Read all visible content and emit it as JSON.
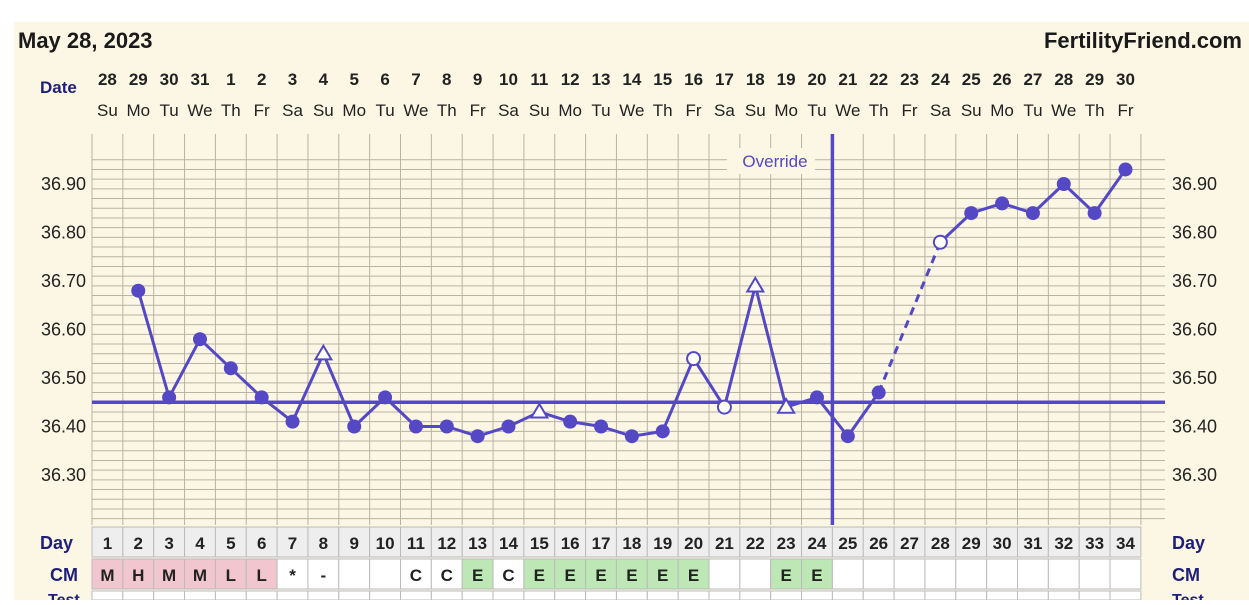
{
  "header": {
    "date": "May 28, 2023",
    "brand": "FertilityFriend.com"
  },
  "labels": {
    "date_row": "Date",
    "day_row": "Day",
    "cm_row": "CM",
    "test_row": "Test",
    "override": "Override"
  },
  "colors": {
    "background": "#fbf7e4",
    "grid": "#b8b3a4",
    "series": "#5548c4",
    "text": "#222222",
    "cm_red": "#f2c6cf",
    "cm_green": "#bde8b5",
    "day_cell": "#eeeeee"
  },
  "chart_data": {
    "type": "line",
    "title": "",
    "xlabel": "Day",
    "ylabel": "",
    "ylim": [
      36.21,
      36.99
    ],
    "yticks": [
      36.3,
      36.4,
      36.5,
      36.6,
      36.7,
      36.8,
      36.9
    ],
    "ytick_labels": [
      "36.30",
      "36.40",
      "36.50",
      "36.60",
      "36.70",
      "36.80",
      "36.90"
    ],
    "grid": true,
    "coverline": 36.45,
    "ovulation_day": 24,
    "dates": [
      "28",
      "29",
      "30",
      "31",
      "1",
      "2",
      "3",
      "4",
      "5",
      "6",
      "7",
      "8",
      "9",
      "10",
      "11",
      "12",
      "13",
      "14",
      "15",
      "16",
      "17",
      "18",
      "19",
      "20",
      "21",
      "22",
      "23",
      "24",
      "25",
      "26",
      "27",
      "28",
      "29",
      "30"
    ],
    "weekdays": [
      "Su",
      "Mo",
      "Tu",
      "We",
      "Th",
      "Fr",
      "Sa",
      "Su",
      "Mo",
      "Tu",
      "We",
      "Th",
      "Fr",
      "Sa",
      "Su",
      "Mo",
      "Tu",
      "We",
      "Th",
      "Fr",
      "Sa",
      "Su",
      "Mo",
      "Tu",
      "We",
      "Th",
      "Fr",
      "Sa",
      "Su",
      "Mo",
      "Tu",
      "We",
      "Th",
      "Fr"
    ],
    "cycle_days": [
      "1",
      "2",
      "3",
      "4",
      "5",
      "6",
      "7",
      "8",
      "9",
      "10",
      "11",
      "12",
      "13",
      "14",
      "15",
      "16",
      "17",
      "18",
      "19",
      "20",
      "21",
      "22",
      "23",
      "24",
      "25",
      "26",
      "27",
      "28",
      "29",
      "30",
      "31",
      "32",
      "33",
      "34"
    ],
    "temperatures": [
      {
        "day": 2,
        "value": 36.68,
        "marker": "filled"
      },
      {
        "day": 3,
        "value": 36.46,
        "marker": "filled"
      },
      {
        "day": 4,
        "value": 36.58,
        "marker": "filled"
      },
      {
        "day": 5,
        "value": 36.52,
        "marker": "filled"
      },
      {
        "day": 6,
        "value": 36.46,
        "marker": "filled"
      },
      {
        "day": 7,
        "value": 36.41,
        "marker": "filled"
      },
      {
        "day": 8,
        "value": 36.55,
        "marker": "triangle"
      },
      {
        "day": 9,
        "value": 36.4,
        "marker": "filled"
      },
      {
        "day": 10,
        "value": 36.46,
        "marker": "filled"
      },
      {
        "day": 11,
        "value": 36.4,
        "marker": "filled"
      },
      {
        "day": 12,
        "value": 36.4,
        "marker": "filled"
      },
      {
        "day": 13,
        "value": 36.38,
        "marker": "filled"
      },
      {
        "day": 14,
        "value": 36.4,
        "marker": "filled"
      },
      {
        "day": 15,
        "value": 36.43,
        "marker": "triangle"
      },
      {
        "day": 16,
        "value": 36.41,
        "marker": "filled"
      },
      {
        "day": 17,
        "value": 36.4,
        "marker": "filled"
      },
      {
        "day": 18,
        "value": 36.38,
        "marker": "filled"
      },
      {
        "day": 19,
        "value": 36.39,
        "marker": "filled"
      },
      {
        "day": 20,
        "value": 36.54,
        "marker": "open"
      },
      {
        "day": 21,
        "value": 36.44,
        "marker": "open"
      },
      {
        "day": 22,
        "value": 36.69,
        "marker": "triangle"
      },
      {
        "day": 23,
        "value": 36.44,
        "marker": "triangle"
      },
      {
        "day": 24,
        "value": 36.46,
        "marker": "filled"
      },
      {
        "day": 25,
        "value": 36.38,
        "marker": "filled"
      },
      {
        "day": 26,
        "value": 36.47,
        "marker": "filled"
      },
      {
        "day": 28,
        "value": 36.78,
        "marker": "open"
      },
      {
        "day": 29,
        "value": 36.84,
        "marker": "filled"
      },
      {
        "day": 30,
        "value": 36.86,
        "marker": "filled"
      },
      {
        "day": 31,
        "value": 36.84,
        "marker": "filled"
      },
      {
        "day": 32,
        "value": 36.9,
        "marker": "filled"
      },
      {
        "day": 33,
        "value": 36.84,
        "marker": "filled"
      },
      {
        "day": 34,
        "value": 36.93,
        "marker": "filled"
      }
    ],
    "dashed_from_day": 26,
    "dashed_to_day": 28,
    "cervical_mucus": [
      {
        "day": 1,
        "value": "M",
        "color": "red"
      },
      {
        "day": 2,
        "value": "H",
        "color": "red"
      },
      {
        "day": 3,
        "value": "M",
        "color": "red"
      },
      {
        "day": 4,
        "value": "M",
        "color": "red"
      },
      {
        "day": 5,
        "value": "L",
        "color": "red"
      },
      {
        "day": 6,
        "value": "L",
        "color": "red"
      },
      {
        "day": 7,
        "value": "*",
        "color": "none"
      },
      {
        "day": 8,
        "value": "-",
        "color": "none"
      },
      {
        "day": 11,
        "value": "C",
        "color": "none"
      },
      {
        "day": 12,
        "value": "C",
        "color": "none"
      },
      {
        "day": 13,
        "value": "E",
        "color": "green"
      },
      {
        "day": 14,
        "value": "C",
        "color": "none"
      },
      {
        "day": 15,
        "value": "E",
        "color": "green"
      },
      {
        "day": 16,
        "value": "E",
        "color": "green"
      },
      {
        "day": 17,
        "value": "E",
        "color": "green"
      },
      {
        "day": 18,
        "value": "E",
        "color": "green"
      },
      {
        "day": 19,
        "value": "E",
        "color": "green"
      },
      {
        "day": 20,
        "value": "E",
        "color": "green"
      },
      {
        "day": 23,
        "value": "E",
        "color": "green"
      },
      {
        "day": 24,
        "value": "E",
        "color": "green"
      }
    ]
  }
}
